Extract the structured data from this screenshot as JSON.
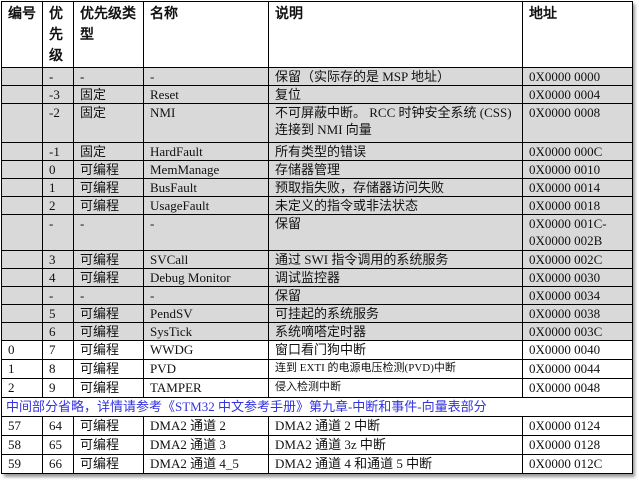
{
  "headers": [
    "编号",
    "优先级",
    "优先级类型",
    "名称",
    "说明",
    "地址"
  ],
  "rows": [
    {
      "gray": true,
      "h": 18,
      "cells": [
        "",
        "-",
        "-",
        "-",
        "保留（实际存的是 MSP 地址）",
        "0X0000 0000"
      ]
    },
    {
      "gray": true,
      "h": 18,
      "cells": [
        "",
        "-3",
        "固定",
        "Reset",
        " 复位",
        "0X0000 0004"
      ]
    },
    {
      "gray": true,
      "h": 39,
      "cells": [
        "",
        "-2",
        "固定",
        "NMI",
        "不可屏蔽中断。 RCC 时钟安全系统 (CSS) 连接到 NMI 向量",
        "0X0000 0008"
      ]
    },
    {
      "gray": true,
      "h": 18,
      "cells": [
        "",
        "-1",
        "固定",
        "HardFault",
        "所有类型的错误",
        "0X0000 000C"
      ]
    },
    {
      "gray": true,
      "h": 18,
      "cells": [
        "",
        "0",
        "可编程",
        "MemManage",
        "存储器管理",
        "0X0000 0010"
      ]
    },
    {
      "gray": true,
      "h": 18,
      "cells": [
        "",
        "1",
        "可编程",
        "BusFault",
        "预取指失败，存储器访问失败",
        "0X0000 0014"
      ]
    },
    {
      "gray": true,
      "h": 18,
      "cells": [
        "",
        "2",
        "可编程",
        "UsageFault",
        "未定义的指令或非法状态",
        "0X0000 0018"
      ]
    },
    {
      "gray": true,
      "h": 36,
      "cells": [
        "",
        "-",
        "-",
        "-",
        "保留",
        "0X0000 001C- 0X0000 002B"
      ]
    },
    {
      "gray": true,
      "h": 18,
      "cells": [
        "",
        "3",
        "可编程",
        "SVCall",
        "通过 SWI 指令调用的系统服务",
        "0X0000 002C"
      ]
    },
    {
      "gray": true,
      "h": 18,
      "cells": [
        "",
        "4",
        "可编程",
        "Debug Monitor",
        "调试监控器",
        "0X0000 0030"
      ]
    },
    {
      "gray": true,
      "h": 18,
      "cells": [
        "",
        "-",
        "-",
        "-",
        "保留",
        "0X0000 0034"
      ]
    },
    {
      "gray": true,
      "h": 18,
      "cells": [
        "",
        "5",
        "可编程",
        "PendSV",
        "可挂起的系统服务",
        "0X0000 0038"
      ]
    },
    {
      "gray": true,
      "h": 18,
      "cells": [
        "",
        "6",
        "可编程",
        "SysTick",
        "系统嘀嗒定时器",
        "0X0000 003C"
      ]
    },
    {
      "gray": false,
      "h": 19,
      "cells": [
        "0",
        "7",
        "可编程",
        "WWDG",
        "窗口看门狗中断",
        "0X0000 0040"
      ]
    },
    {
      "gray": false,
      "h": 19,
      "small": true,
      "cells": [
        "1",
        "8",
        "可编程",
        "PVD",
        "连到 EXTI 的电源电压检测(PVD)中断",
        "0X0000 0044"
      ]
    },
    {
      "gray": false,
      "h": 19,
      "small": true,
      "cells": [
        "2",
        "9",
        "可编程",
        "TAMPER",
        "侵入检测中断",
        "0X0000 0048"
      ]
    },
    {
      "note": "中间部分省略，详情请参考《STM32 中文参考手册》第九章-中断和事件-向量表部分",
      "h": 19
    },
    {
      "gray": false,
      "h": 19,
      "cells": [
        "57",
        "64",
        "可编程",
        "DMA2 通道 2",
        "DMA2 通道 2 中断",
        "0X0000 0124"
      ]
    },
    {
      "gray": false,
      "h": 19,
      "cells": [
        "58",
        "65",
        "可编程",
        "DMA2 通道 3",
        "DMA2 通道 3z 中断",
        "0X0000 0128"
      ]
    },
    {
      "gray": false,
      "h": 19,
      "cells": [
        "59",
        "66",
        "可编程",
        "DMA2 通道 4_5",
        "DMA2 通道 4 和通道 5 中断",
        "0X0000 012C"
      ]
    }
  ],
  "colors": {
    "gray_row": "#d9d9d9",
    "note_text": "#3333dd"
  }
}
